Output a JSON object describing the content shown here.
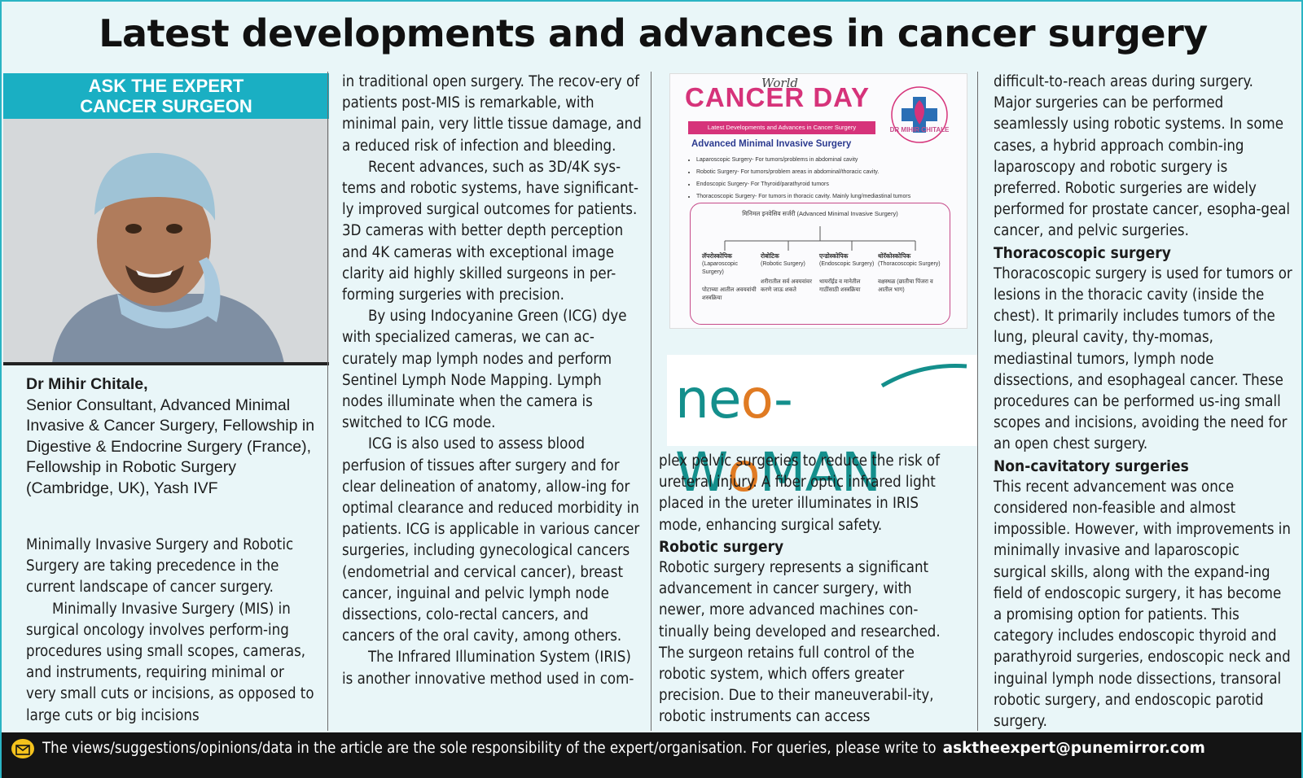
{
  "headline": "Latest developments and advances in cancer surgery",
  "expert": {
    "banner_line1": "ASK THE EXPERT",
    "banner_line2": "CANCER SURGEON",
    "name": "Dr Mihir Chitale,",
    "credentials": "Senior Consultant, Advanced Minimal Invasive & Cancer Surgery, Fellowship in Digestive & Endocrine Surgery (France), Fellowship in Robotic Surgery (Cambridge, UK), Yash IVF"
  },
  "article": {
    "col1_p1": "Minimally Invasive Surgery and Robotic Surgery are taking precedence in the current landscape of cancer surgery.",
    "col1_p2": "Minimally Invasive Surgery (MIS) in surgical oncology involves perform-ing procedures using small scopes, cameras, and instruments, requiring minimal or very small cuts or incisions, as opposed to large cuts or big incisions",
    "col2_p1": "in traditional open surgery. The recov-ery of patients post-MIS is remarkable, with minimal pain, very little tissue damage, and a reduced risk of infection and bleeding.",
    "col2_p2": "Recent advances, such as 3D/4K sys-tems and robotic systems, have significant-ly improved surgical outcomes for patients. 3D cameras with better depth perception and 4K cameras with exceptional image clarity aid highly skilled surgeons in per-forming surgeries with precision.",
    "col2_p3": "By using Indocyanine Green (ICG) dye with specialized cameras, we can ac-curately map lymph nodes and perform Sentinel Lymph Node Mapping. Lymph nodes illuminate when the camera is switched to ICG mode.",
    "col2_p4": "ICG is also used to assess blood perfusion of tissues after surgery and for clear delineation of anatomy, allow-ing for optimal clearance and reduced morbidity in patients. ICG is applicable in various cancer surgeries, including gynecological cancers (endometrial and cervical cancer), breast cancer, inguinal and pelvic lymph node dissections, colo-rectal cancers, and cancers of the oral cavity, among others.",
    "col2_p5": "The Infrared Illumination System (IRIS) is another innovative method used in com-",
    "col3_p1": "plex pelvic surgeries to reduce the risk of ureteral injury. A fiber optic infrared light placed in the ureter illuminates in IRIS mode, enhancing surgical safety.",
    "col3_h1": "Robotic surgery",
    "col3_p2": "Robotic surgery represents a significant advancement in cancer surgery, with newer, more advanced machines con-tinually being developed and researched. The surgeon retains full control of the robotic system, which offers greater precision. Due to their maneuverabil-ity, robotic instruments can access",
    "col4_p1": "difficult-to-reach areas during surgery. Major surgeries can be performed seamlessly using robotic systems. In some cases, a hybrid approach combin-ing laparoscopy and robotic surgery is preferred. Robotic surgeries are widely performed for prostate cancer, esopha-geal cancer, and pelvic surgeries.",
    "col4_h1": "Thoracoscopic surgery",
    "col4_p2": "Thoracoscopic surgery is used for tumors or lesions in the thoracic cavity (inside the chest). It primarily includes tumors of the lung, pleural cavity, thy-momas, mediastinal tumors, lymph node dissections, and esophageal cancer. These procedures can be performed us-ing small scopes and incisions, avoiding the need for an open chest surgery.",
    "col4_h2": "Non-cavitatory surgeries",
    "col4_p3": "This recent advancement was once considered non-feasible and almost impossible. However, with improvements in minimally invasive and laparoscopic surgical skills, along with the expand-ing field of endoscopic surgery, it has become a promising option for patients. This category includes endoscopic thyroid and parathyroid surgeries, endoscopic neck and inguinal lymph node dissections, transoral robotic surgery, and endoscopic parotid surgery."
  },
  "poster": {
    "world": "World",
    "title": "CANCER DAY",
    "strip": "Latest Developments and Advances in Cancer Surgery",
    "subtitle": "Advanced Minimal Invasive Surgery",
    "bullets": [
      "Laparoscopic Surgery- For tumors/problems in abdominal cavity",
      "Robotic Surgery- For tumors/problem areas in abdominal/thoracic cavity.",
      "Endoscopic Surgery- For Thyroid/parathyroid tumors",
      "Thoracoscopic Surgery- For tumors in thoracic cavity. Mainly lung/mediastinal tumors"
    ],
    "diagram_title": "मिनिमल इनवेसिव सर्जरी (Advanced Minimal Invasive Surgery)",
    "branches": [
      {
        "mr": "लॅपरोस्कोपिक",
        "en": "(Laparoscopic Surgery)",
        "desc": "पोटाच्या आतील अवयवांची शस्त्रक्रिया"
      },
      {
        "mr": "रोबोटिक",
        "en": "(Robotic Surgery)",
        "desc": "शरीरातील सर्व अवयवांवर करणे जाऊ शकते"
      },
      {
        "mr": "एन्डोस्कोपिक",
        "en": "(Endoscopic Surgery)",
        "desc": "थायरॉईड व मानेतील गाठींसाठी शस्त्रक्रिया"
      },
      {
        "mr": "थोरॅकोस्कोपिक",
        "en": "(Thoracoscopic Surgery)",
        "desc": "वक्षस्थळ (छातीचा पिंजरा व आतील भाग)"
      }
    ],
    "logo_name": "DR MIHIR CHITALE"
  },
  "ad": {
    "brand_part1": "ne",
    "brand_o": "o",
    "brand_part2": "-W",
    "brand_part3": "MAN"
  },
  "footer": {
    "text": "The views/suggestions/opinions/data in the article are the sole responsibility of the expert/organisation. For queries, please write to",
    "email": "asktheexpert@punemirror.com"
  },
  "colors": {
    "accent": "#1aafc3",
    "page_bg": "#e9f6f8",
    "poster_pink": "#d6337a",
    "brand_teal": "#148f8c",
    "brand_orange": "#e07b23"
  }
}
